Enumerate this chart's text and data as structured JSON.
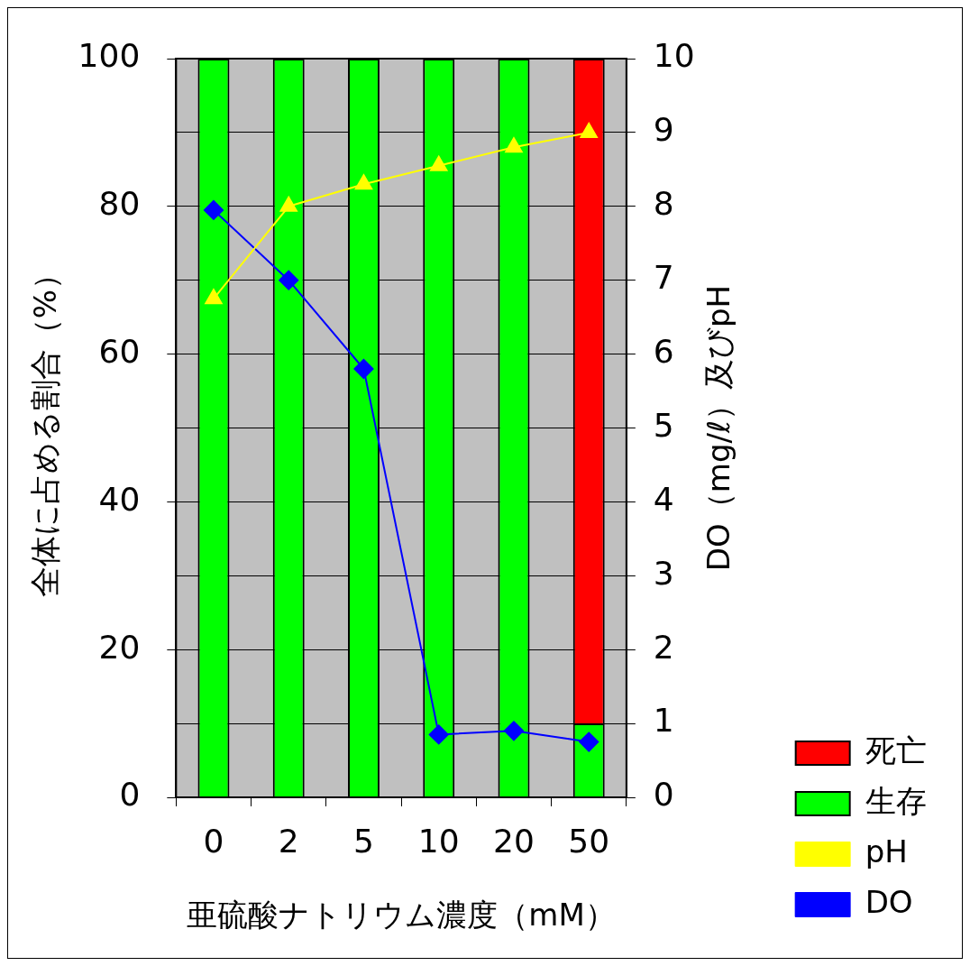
{
  "chart_data": {
    "type": "bar",
    "stacked": true,
    "xlabel": "亜硫酸ナトリウム濃度（mM）",
    "ylabel": "全体に占める割合（%）",
    "y2label": "DO（mg/ℓ）及びpH",
    "categories": [
      "0",
      "2",
      "5",
      "10",
      "20",
      "50"
    ],
    "series": [
      {
        "name": "生存",
        "color": "#00ff00",
        "values": [
          100,
          100,
          100,
          100,
          100,
          10
        ]
      },
      {
        "name": "死亡",
        "color": "#ff0000",
        "values": [
          0,
          0,
          0,
          0,
          0,
          90
        ]
      },
      {
        "name": "pH",
        "type": "line",
        "axis": "y2",
        "color": "#ffff00",
        "marker": "triangle",
        "values": [
          6.75,
          8.0,
          8.3,
          8.55,
          8.8,
          9.0
        ]
      },
      {
        "name": "DO",
        "type": "line",
        "axis": "y2",
        "color": "#0000ff",
        "marker": "diamond",
        "values": [
          7.95,
          7.0,
          5.8,
          0.85,
          0.9,
          0.75
        ]
      }
    ],
    "ylim": [
      0,
      100
    ],
    "yticks": [
      0,
      20,
      40,
      60,
      80,
      100
    ],
    "y2lim": [
      0,
      10
    ],
    "y2ticks": [
      0,
      1,
      2,
      3,
      4,
      5,
      6,
      7,
      8,
      9,
      10
    ],
    "grid": "y2",
    "legend": "bottom right"
  }
}
